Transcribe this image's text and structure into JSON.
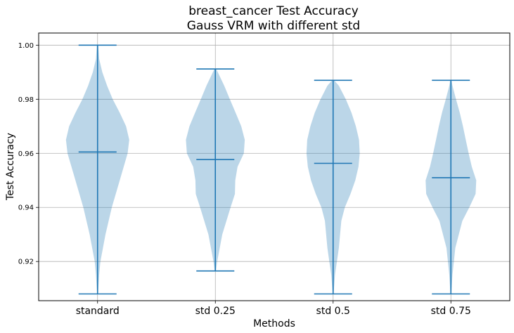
{
  "chart_data": {
    "type": "violin",
    "title": "breast_cancer Test Accuracy",
    "subtitle": "Gauss VRM with different std",
    "xlabel": "Methods",
    "ylabel": "Test Accuracy",
    "ylim": [
      0.9055,
      1.0045
    ],
    "yticks": [
      "0.92",
      "0.94",
      "0.96",
      "0.98",
      "1.00"
    ],
    "ytick_values": [
      0.92,
      0.94,
      0.96,
      0.98,
      1.0
    ],
    "grid": true,
    "colors": {
      "line": "#1f77b4",
      "fill": "#1f77b4"
    },
    "categories": [
      "standard",
      "std 0.25",
      "std 0.5",
      "std 0.75"
    ],
    "series": [
      {
        "min": 0.908,
        "max": 1.0,
        "median": 0.9605,
        "density": [
          [
            0.908,
            0.015
          ],
          [
            0.915,
            0.05
          ],
          [
            0.92,
            0.09
          ],
          [
            0.93,
            0.25
          ],
          [
            0.94,
            0.45
          ],
          [
            0.95,
            0.7
          ],
          [
            0.96,
            0.95
          ],
          [
            0.965,
            1.0
          ],
          [
            0.97,
            0.9
          ],
          [
            0.975,
            0.7
          ],
          [
            0.98,
            0.48
          ],
          [
            0.985,
            0.3
          ],
          [
            0.99,
            0.15
          ],
          [
            0.995,
            0.05
          ],
          [
            1.0,
            0.02
          ]
        ]
      },
      {
        "min": 0.9165,
        "max": 0.9912,
        "median": 0.9577,
        "density": [
          [
            0.9165,
            0.02
          ],
          [
            0.92,
            0.06
          ],
          [
            0.93,
            0.22
          ],
          [
            0.94,
            0.48
          ],
          [
            0.945,
            0.62
          ],
          [
            0.95,
            0.63
          ],
          [
            0.955,
            0.7
          ],
          [
            0.96,
            0.9
          ],
          [
            0.965,
            0.93
          ],
          [
            0.97,
            0.82
          ],
          [
            0.975,
            0.64
          ],
          [
            0.98,
            0.46
          ],
          [
            0.985,
            0.28
          ],
          [
            0.9912,
            0.03
          ]
        ]
      },
      {
        "min": 0.908,
        "max": 0.987,
        "median": 0.9563,
        "density": [
          [
            0.908,
            0.015
          ],
          [
            0.915,
            0.06
          ],
          [
            0.925,
            0.18
          ],
          [
            0.935,
            0.26
          ],
          [
            0.94,
            0.37
          ],
          [
            0.945,
            0.55
          ],
          [
            0.95,
            0.7
          ],
          [
            0.955,
            0.8
          ],
          [
            0.96,
            0.84
          ],
          [
            0.965,
            0.82
          ],
          [
            0.97,
            0.72
          ],
          [
            0.975,
            0.58
          ],
          [
            0.98,
            0.4
          ],
          [
            0.985,
            0.18
          ],
          [
            0.987,
            0.03
          ]
        ]
      },
      {
        "min": 0.908,
        "max": 0.987,
        "median": 0.951,
        "density": [
          [
            0.908,
            0.015
          ],
          [
            0.915,
            0.05
          ],
          [
            0.925,
            0.14
          ],
          [
            0.935,
            0.36
          ],
          [
            0.94,
            0.58
          ],
          [
            0.945,
            0.78
          ],
          [
            0.95,
            0.8
          ],
          [
            0.955,
            0.66
          ],
          [
            0.96,
            0.56
          ],
          [
            0.965,
            0.47
          ],
          [
            0.97,
            0.38
          ],
          [
            0.975,
            0.28
          ],
          [
            0.98,
            0.16
          ],
          [
            0.985,
            0.05
          ],
          [
            0.987,
            0.02
          ]
        ]
      }
    ]
  }
}
